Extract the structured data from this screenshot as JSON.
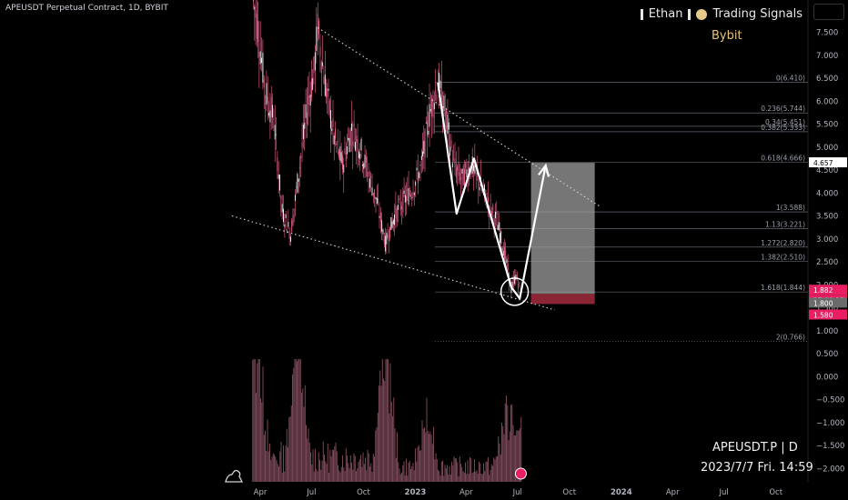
{
  "header": {
    "title": "APEUSDT Perpetual Contract, 1D, BYBIT",
    "author_label": "Ethan",
    "signals_label": "Trading Signals",
    "exchange": "Bybit"
  },
  "info_box": {
    "symbol": "APEUSDT.P | D",
    "datetime": "2023/7/7 Fri. 14:59"
  },
  "colors": {
    "background": "#000000",
    "candle": "#f06292",
    "volume": "#f48fb1",
    "fib_line": "#7a7a8a",
    "target_box": "#9e9e9e",
    "stop_box": "#8b2433",
    "price_label_red": "#e91e63",
    "price_label_gray": "#6b6b6b",
    "accent_gold": "#e5c27a"
  },
  "chart_data": {
    "type": "candlestick",
    "title": "APEUSDT Perpetual Contract, 1D, BYBIT",
    "y_axis": {
      "ticks": [
        "7.500",
        "7.000",
        "6.500",
        "6.000",
        "5.500",
        "5.000",
        "4.500",
        "4.000",
        "3.500",
        "3.000",
        "2.500",
        "2.000",
        "1.500",
        "1.000",
        "0.500",
        "0.000",
        "−0.500",
        "−1.000",
        "−1.500",
        "−2.000"
      ],
      "range": [
        -2.2,
        8.2
      ]
    },
    "x_axis": {
      "ticks": [
        "Apr",
        "Jul",
        "Oct",
        "2023",
        "Apr",
        "Jul",
        "Oct",
        "2024",
        "Apr",
        "Jul",
        "Oct"
      ],
      "bold_ticks": [
        "2023",
        "2024"
      ]
    },
    "price_path": [
      [
        "2022-03-20",
        8.2
      ],
      [
        "2022-03-28",
        7.6
      ],
      [
        "2022-04-10",
        6.2
      ],
      [
        "2022-04-25",
        5.6
      ],
      [
        "2022-05-10",
        3.6
      ],
      [
        "2022-05-25",
        3.1
      ],
      [
        "2022-06-10",
        4.6
      ],
      [
        "2022-06-25",
        6.0
      ],
      [
        "2022-07-05",
        6.6
      ],
      [
        "2022-07-12",
        7.6
      ],
      [
        "2022-07-25",
        6.4
      ],
      [
        "2022-08-10",
        5.2
      ],
      [
        "2022-08-25",
        4.6
      ],
      [
        "2022-09-10",
        5.4
      ],
      [
        "2022-09-25",
        5.0
      ],
      [
        "2022-10-10",
        4.4
      ],
      [
        "2022-10-25",
        3.8
      ],
      [
        "2022-11-09",
        2.9
      ],
      [
        "2022-11-25",
        3.5
      ],
      [
        "2022-12-10",
        3.8
      ],
      [
        "2022-12-28",
        4.1
      ],
      [
        "2023-01-12",
        4.6
      ],
      [
        "2023-01-26",
        5.7
      ],
      [
        "2023-02-10",
        6.4
      ],
      [
        "2023-02-25",
        5.6
      ],
      [
        "2023-03-10",
        4.6
      ],
      [
        "2023-03-25",
        4.3
      ],
      [
        "2023-04-10",
        4.6
      ],
      [
        "2023-04-25",
        4.2
      ],
      [
        "2023-05-10",
        3.8
      ],
      [
        "2023-05-25",
        3.4
      ],
      [
        "2023-06-10",
        2.6
      ],
      [
        "2023-06-20",
        1.9
      ],
      [
        "2023-06-28",
        2.2
      ],
      [
        "2023-07-07",
        1.882
      ]
    ],
    "volume": {
      "axis": "overlay-bottom",
      "peaks": [
        [
          "2022-03-25",
          "high"
        ],
        [
          "2022-06-05",
          "high"
        ],
        [
          "2022-11-08",
          "high"
        ],
        [
          "2023-01-20",
          "medium"
        ],
        [
          "2023-06-10",
          "medium"
        ],
        [
          "2023-07-05",
          "medium"
        ]
      ]
    },
    "fibonacci": [
      {
        "label": "0(6.410)",
        "value": 6.41
      },
      {
        "label": "0.236(5.744)",
        "value": 5.744
      },
      {
        "label": "0.34(5.451)",
        "value": 5.451
      },
      {
        "label": "0.382(5.333)",
        "value": 5.333
      },
      {
        "label": "0.618(4.666)",
        "value": 4.666
      },
      {
        "label": "1(3.588)",
        "value": 3.588
      },
      {
        "label": "1.13(3.221)",
        "value": 3.221
      },
      {
        "label": "1.272(2.820)",
        "value": 2.82
      },
      {
        "label": "1.382(2.510)",
        "value": 2.51
      },
      {
        "label": "1.618(1.844)",
        "value": 1.844
      },
      {
        "label": "2(0.766)",
        "value": 0.766
      }
    ],
    "trendlines": [
      {
        "from": [
          "2022-07-12",
          7.6
        ],
        "to": [
          "2023-11-25",
          3.7
        ]
      },
      {
        "from": [
          "2022-02-10",
          3.5
        ],
        "to": [
          "2023-09-05",
          1.45
        ]
      }
    ],
    "projection_path": [
      [
        "2023-02-10",
        6.4
      ],
      [
        "2023-03-15",
        3.55
      ],
      [
        "2023-04-15",
        4.75
      ],
      [
        "2023-06-20",
        1.95
      ],
      [
        "2023-07-05",
        1.7
      ],
      [
        "2023-08-20",
        4.6
      ]
    ],
    "target_zone": {
      "from": "2023-07-25",
      "to": "2023-11-15",
      "top": 4.657,
      "bottom": 1.8
    },
    "stop_zone": {
      "from": "2023-07-25",
      "to": "2023-11-15",
      "top": 1.8,
      "bottom": 1.58
    },
    "highlight_circle": {
      "date": "2023-06-26",
      "value": 1.85
    },
    "price_labels": [
      {
        "text": "4.657",
        "value": 4.657,
        "style": "dark"
      },
      {
        "text": "1.882",
        "value": 1.882,
        "style": "red"
      },
      {
        "text": "17:00:13",
        "value": 1.882,
        "style": "red-sub"
      },
      {
        "text": "1.800",
        "value": 1.8,
        "style": "gray"
      },
      {
        "text": "1.580",
        "value": 1.58,
        "style": "red"
      }
    ]
  }
}
